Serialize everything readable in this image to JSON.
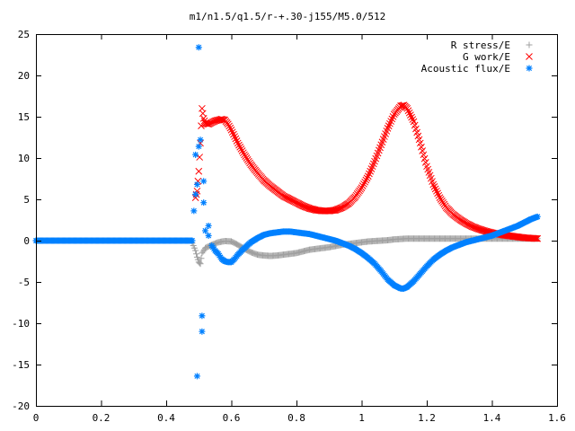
{
  "chart_data": {
    "type": "scatter",
    "title": "m1/n1.5/q1.5/r-+.30-j155/M5.0/512",
    "xlabel": "",
    "ylabel": "",
    "xlim": [
      0,
      1.6
    ],
    "ylim": [
      -20,
      25
    ],
    "x_ticks": [
      0,
      0.2,
      0.4,
      0.6,
      0.8,
      1,
      1.2,
      1.4,
      1.6
    ],
    "y_ticks": [
      -20,
      -15,
      -10,
      -5,
      0,
      5,
      10,
      15,
      20,
      25
    ],
    "x_tick_labels": [
      "0",
      "0.2",
      "0.4",
      "0.6",
      "0.8",
      "1",
      "1.2",
      "1.4",
      "1.6"
    ],
    "y_tick_labels": [
      "-20",
      "-15",
      "-10",
      "-5",
      "0",
      "5",
      "10",
      "15",
      "20",
      "25"
    ],
    "grid": false,
    "legend_position": "top-right",
    "series": [
      {
        "name": "R stress/E",
        "marker": "plus",
        "color": "#a0a0a0",
        "x_start": 0.48,
        "x_end": 1.54,
        "points": [
          [
            0.48,
            -0.3
          ],
          [
            0.49,
            -1.2
          ],
          [
            0.495,
            -2.0
          ],
          [
            0.5,
            -2.6
          ],
          [
            0.505,
            -2.8
          ],
          [
            0.51,
            -1.5
          ],
          [
            0.52,
            -0.9
          ],
          [
            0.54,
            -0.5
          ],
          [
            0.56,
            -0.2
          ],
          [
            0.58,
            -0.05
          ],
          [
            0.6,
            -0.1
          ],
          [
            0.62,
            -0.5
          ],
          [
            0.64,
            -1.0
          ],
          [
            0.66,
            -1.4
          ],
          [
            0.68,
            -1.7
          ],
          [
            0.7,
            -1.8
          ],
          [
            0.72,
            -1.85
          ],
          [
            0.74,
            -1.8
          ],
          [
            0.76,
            -1.7
          ],
          [
            0.78,
            -1.6
          ],
          [
            0.8,
            -1.5
          ],
          [
            0.82,
            -1.3
          ],
          [
            0.84,
            -1.1
          ],
          [
            0.86,
            -1.0
          ],
          [
            0.88,
            -0.9
          ],
          [
            0.9,
            -0.8
          ],
          [
            0.92,
            -0.65
          ],
          [
            0.94,
            -0.5
          ],
          [
            0.96,
            -0.4
          ],
          [
            0.98,
            -0.3
          ],
          [
            1.0,
            -0.2
          ],
          [
            1.02,
            -0.1
          ],
          [
            1.04,
            -0.05
          ],
          [
            1.06,
            0.0
          ],
          [
            1.08,
            0.05
          ],
          [
            1.1,
            0.15
          ],
          [
            1.12,
            0.2
          ],
          [
            1.14,
            0.25
          ],
          [
            1.16,
            0.25
          ],
          [
            1.18,
            0.25
          ],
          [
            1.2,
            0.25
          ],
          [
            1.22,
            0.25
          ],
          [
            1.24,
            0.25
          ],
          [
            1.26,
            0.25
          ],
          [
            1.28,
            0.25
          ],
          [
            1.3,
            0.25
          ],
          [
            1.32,
            0.25
          ],
          [
            1.34,
            0.25
          ],
          [
            1.36,
            0.25
          ],
          [
            1.38,
            0.25
          ],
          [
            1.4,
            0.25
          ],
          [
            1.42,
            0.25
          ],
          [
            1.44,
            0.25
          ],
          [
            1.46,
            0.25
          ],
          [
            1.48,
            0.25
          ],
          [
            1.5,
            0.25
          ],
          [
            1.52,
            0.25
          ],
          [
            1.54,
            0.25
          ]
        ]
      },
      {
        "name": "G work/E",
        "marker": "cross",
        "color": "#ff0000",
        "x_start": 0.49,
        "x_end": 1.54,
        "points": [
          [
            0.49,
            5.2
          ],
          [
            0.495,
            6.0
          ],
          [
            0.5,
            8.4
          ],
          [
            0.505,
            11.8
          ],
          [
            0.51,
            16.0
          ],
          [
            0.515,
            14.8
          ],
          [
            0.52,
            14.2
          ],
          [
            0.53,
            14.1
          ],
          [
            0.54,
            14.3
          ],
          [
            0.55,
            14.5
          ],
          [
            0.56,
            14.6
          ],
          [
            0.57,
            14.7
          ],
          [
            0.58,
            14.6
          ],
          [
            0.59,
            14.1
          ],
          [
            0.6,
            13.4
          ],
          [
            0.62,
            11.8
          ],
          [
            0.64,
            10.4
          ],
          [
            0.66,
            9.2
          ],
          [
            0.68,
            8.2
          ],
          [
            0.7,
            7.3
          ],
          [
            0.72,
            6.6
          ],
          [
            0.74,
            6.0
          ],
          [
            0.76,
            5.4
          ],
          [
            0.78,
            5.0
          ],
          [
            0.8,
            4.6
          ],
          [
            0.82,
            4.2
          ],
          [
            0.84,
            3.9
          ],
          [
            0.86,
            3.7
          ],
          [
            0.88,
            3.6
          ],
          [
            0.9,
            3.6
          ],
          [
            0.92,
            3.7
          ],
          [
            0.94,
            4.0
          ],
          [
            0.96,
            4.5
          ],
          [
            0.98,
            5.3
          ],
          [
            1.0,
            6.4
          ],
          [
            1.02,
            7.8
          ],
          [
            1.04,
            9.6
          ],
          [
            1.06,
            11.6
          ],
          [
            1.08,
            13.6
          ],
          [
            1.1,
            15.3
          ],
          [
            1.12,
            16.3
          ],
          [
            1.13,
            16.4
          ],
          [
            1.14,
            16.0
          ],
          [
            1.16,
            14.4
          ],
          [
            1.18,
            11.8
          ],
          [
            1.2,
            9.0
          ],
          [
            1.22,
            6.8
          ],
          [
            1.24,
            5.2
          ],
          [
            1.26,
            4.0
          ],
          [
            1.28,
            3.2
          ],
          [
            1.3,
            2.6
          ],
          [
            1.32,
            2.1
          ],
          [
            1.34,
            1.7
          ],
          [
            1.36,
            1.4
          ],
          [
            1.38,
            1.15
          ],
          [
            1.4,
            0.95
          ],
          [
            1.42,
            0.8
          ],
          [
            1.44,
            0.65
          ],
          [
            1.46,
            0.55
          ],
          [
            1.48,
            0.45
          ],
          [
            1.5,
            0.35
          ],
          [
            1.52,
            0.3
          ],
          [
            1.54,
            0.25
          ]
        ]
      },
      {
        "name": "Acoustic flux/E",
        "marker": "star",
        "color": "#0080ff",
        "flat_x_start": 0.0,
        "flat_x_end": 0.48,
        "flat_y": 0.0,
        "points": [
          [
            0.485,
            3.6
          ],
          [
            0.49,
            10.4
          ],
          [
            0.49,
            5.6
          ],
          [
            0.495,
            -16.4
          ],
          [
            0.495,
            6.8
          ],
          [
            0.5,
            23.4
          ],
          [
            0.5,
            11.4
          ],
          [
            0.505,
            12.2
          ],
          [
            0.51,
            -9.1
          ],
          [
            0.51,
            -11.0
          ],
          [
            0.515,
            7.2
          ],
          [
            0.515,
            4.6
          ],
          [
            0.52,
            1.2
          ],
          [
            0.53,
            1.8
          ],
          [
            0.53,
            0.6
          ],
          [
            0.54,
            -0.6
          ],
          [
            0.55,
            -1.2
          ],
          [
            0.56,
            -1.6
          ],
          [
            0.57,
            -2.2
          ],
          [
            0.58,
            -2.5
          ],
          [
            0.59,
            -2.6
          ],
          [
            0.6,
            -2.6
          ],
          [
            0.61,
            -2.2
          ],
          [
            0.62,
            -1.7
          ],
          [
            0.64,
            -0.9
          ],
          [
            0.66,
            -0.2
          ],
          [
            0.68,
            0.3
          ],
          [
            0.7,
            0.7
          ],
          [
            0.72,
            0.9
          ],
          [
            0.74,
            1.0
          ],
          [
            0.76,
            1.1
          ],
          [
            0.78,
            1.1
          ],
          [
            0.8,
            1.0
          ],
          [
            0.82,
            0.9
          ],
          [
            0.84,
            0.8
          ],
          [
            0.86,
            0.6
          ],
          [
            0.88,
            0.4
          ],
          [
            0.9,
            0.2
          ],
          [
            0.92,
            0.0
          ],
          [
            0.94,
            -0.3
          ],
          [
            0.96,
            -0.6
          ],
          [
            0.98,
            -1.0
          ],
          [
            1.0,
            -1.5
          ],
          [
            1.02,
            -2.1
          ],
          [
            1.04,
            -2.8
          ],
          [
            1.06,
            -3.7
          ],
          [
            1.08,
            -4.7
          ],
          [
            1.1,
            -5.4
          ],
          [
            1.12,
            -5.8
          ],
          [
            1.13,
            -5.8
          ],
          [
            1.14,
            -5.6
          ],
          [
            1.16,
            -4.9
          ],
          [
            1.18,
            -4.0
          ],
          [
            1.2,
            -3.1
          ],
          [
            1.22,
            -2.3
          ],
          [
            1.24,
            -1.7
          ],
          [
            1.26,
            -1.2
          ],
          [
            1.28,
            -0.8
          ],
          [
            1.3,
            -0.5
          ],
          [
            1.32,
            -0.2
          ],
          [
            1.34,
            0.0
          ],
          [
            1.36,
            0.2
          ],
          [
            1.38,
            0.4
          ],
          [
            1.4,
            0.6
          ],
          [
            1.42,
            0.9
          ],
          [
            1.44,
            1.2
          ],
          [
            1.46,
            1.5
          ],
          [
            1.48,
            1.8
          ],
          [
            1.5,
            2.2
          ],
          [
            1.52,
            2.6
          ],
          [
            1.54,
            2.9
          ]
        ]
      }
    ]
  }
}
